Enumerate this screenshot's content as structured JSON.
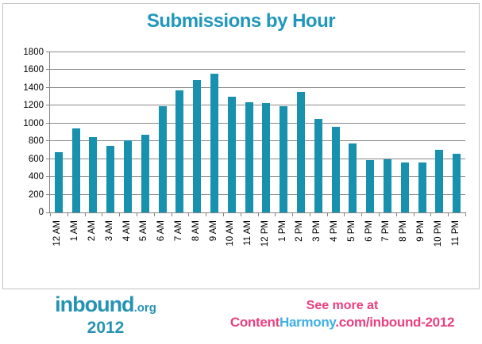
{
  "title": "Submissions by Hour",
  "chart_data": {
    "type": "bar",
    "title": "Submissions by Hour",
    "categories": [
      "12 AM",
      "1 AM",
      "2 AM",
      "3 AM",
      "4 AM",
      "5 AM",
      "6 AM",
      "7 AM",
      "8 AM",
      "9 AM",
      "10 AM",
      "11 AM",
      "12 PM",
      "1 PM",
      "2 PM",
      "3 PM",
      "4 PM",
      "5 PM",
      "6 PM",
      "7 PM",
      "8 PM",
      "9 PM",
      "10 PM",
      "11 PM"
    ],
    "values": [
      680,
      945,
      850,
      745,
      810,
      875,
      1195,
      1370,
      1490,
      1555,
      1300,
      1240,
      1230,
      1190,
      1350,
      1050,
      960,
      775,
      590,
      595,
      565,
      560,
      705,
      660
    ],
    "xlabel": "",
    "ylabel": "",
    "ylim": [
      0,
      1800
    ],
    "ytick_step": 200,
    "grid": true,
    "legend": "none",
    "bar_color": "#1791ad",
    "grid_color": "#8a8a8a",
    "title_color": "#2197bc"
  },
  "footer": {
    "logo_text": "inbound",
    "logo_suffix": ".org",
    "logo_year": "2012",
    "see_more": "See more at",
    "link_part1": "Content",
    "link_part2": "Harmony",
    "link_part3": ".com/inbound-2012",
    "logo_color": "#2793b3",
    "pink_color": "#ea4080",
    "harmony_color": "#3fb0e4"
  }
}
